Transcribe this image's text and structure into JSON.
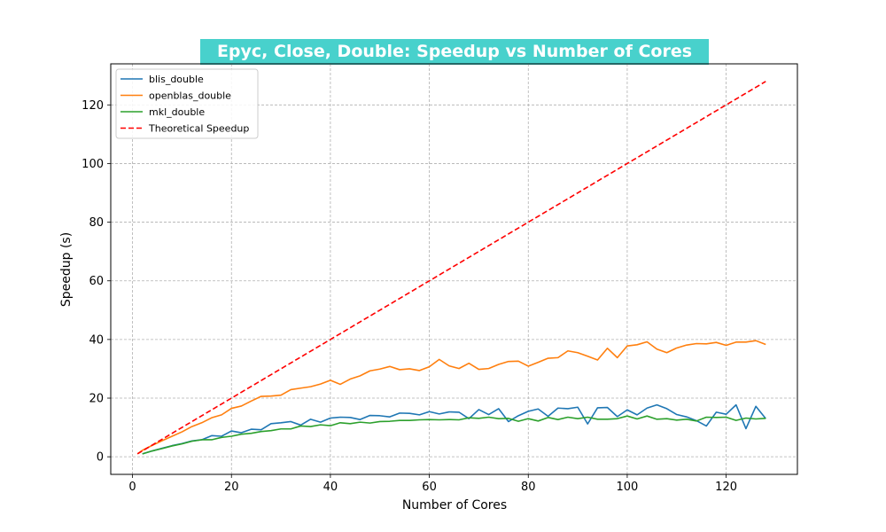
{
  "chart_data": {
    "type": "line",
    "title": "Epyc, Close, Double: Speedup vs Number of Cores",
    "title_bg": "#48d1cc",
    "xlabel": "Number of Cores",
    "ylabel": "Speedup (s)",
    "xlim": [
      -4.4,
      134.4
    ],
    "ylim": [
      -6,
      134
    ],
    "xticks": [
      0,
      20,
      40,
      60,
      80,
      100,
      120
    ],
    "yticks": [
      0,
      20,
      40,
      60,
      80,
      100,
      120
    ],
    "grid": true,
    "legend_position": "top-left",
    "series": [
      {
        "name": "blis_double",
        "color": "#1f77b4",
        "dash": "solid",
        "x": [
          2,
          4,
          6,
          8,
          10,
          12,
          14,
          16,
          18,
          20,
          22,
          24,
          26,
          28,
          30,
          32,
          34,
          36,
          38,
          40,
          42,
          44,
          46,
          48,
          50,
          52,
          54,
          56,
          58,
          60,
          62,
          64,
          66,
          68,
          70,
          72,
          74,
          76,
          78,
          80,
          82,
          84,
          86,
          88,
          90,
          92,
          94,
          96,
          98,
          100,
          102,
          104,
          106,
          108,
          110,
          112,
          114,
          116,
          118,
          120,
          122,
          124,
          126,
          128
        ],
        "y": [
          1.0,
          2.0,
          2.9,
          3.8,
          4.5,
          5.4,
          5.8,
          7.2,
          7.0,
          8.8,
          8.2,
          9.4,
          9.2,
          11.3,
          11.6,
          12.0,
          10.8,
          12.8,
          11.8,
          13.2,
          13.5,
          13.4,
          12.7,
          14.1,
          14.0,
          13.6,
          14.9,
          14.8,
          14.3,
          15.4,
          14.6,
          15.3,
          15.2,
          13.0,
          16.1,
          14.4,
          16.4,
          12.0,
          14.0,
          15.5,
          16.3,
          13.8,
          16.6,
          16.4,
          16.9,
          11.2,
          16.7,
          16.8,
          13.7,
          16.0,
          14.3,
          16.6,
          17.7,
          16.4,
          14.4,
          13.6,
          12.3,
          10.5,
          15.2,
          14.5,
          17.7,
          9.6,
          17.2,
          13.0
        ]
      },
      {
        "name": "openblas_double",
        "color": "#ff7f0e",
        "dash": "solid",
        "x": [
          1,
          2,
          4,
          6,
          8,
          10,
          12,
          14,
          16,
          18,
          20,
          22,
          24,
          26,
          28,
          30,
          32,
          34,
          36,
          38,
          40,
          42,
          44,
          46,
          48,
          50,
          52,
          54,
          56,
          58,
          60,
          62,
          64,
          66,
          68,
          70,
          72,
          74,
          76,
          78,
          80,
          82,
          84,
          86,
          88,
          90,
          92,
          94,
          96,
          98,
          100,
          102,
          104,
          106,
          108,
          110,
          112,
          114,
          116,
          118,
          120,
          122,
          124,
          126,
          128
        ],
        "y": [
          1.0,
          2.2,
          3.9,
          5.5,
          7.0,
          8.5,
          10.3,
          11.6,
          13.3,
          14.3,
          16.5,
          17.3,
          19.0,
          20.6,
          20.7,
          21.0,
          22.9,
          23.4,
          23.9,
          24.8,
          26.1,
          24.7,
          26.5,
          27.6,
          29.3,
          29.9,
          30.8,
          29.7,
          30.0,
          29.4,
          30.7,
          33.2,
          31.0,
          30.1,
          31.9,
          29.8,
          30.1,
          31.5,
          32.5,
          32.6,
          30.9,
          32.2,
          33.6,
          33.8,
          36.1,
          35.5,
          34.3,
          33.0,
          37.0,
          33.8,
          37.8,
          38.2,
          39.2,
          36.7,
          35.5,
          37.1,
          38.1,
          38.6,
          38.5,
          39.0,
          38.0,
          39.1,
          39.1,
          39.6,
          38.3
        ]
      },
      {
        "name": "mkl_double",
        "color": "#2ca02c",
        "dash": "solid",
        "x": [
          2,
          4,
          6,
          8,
          10,
          12,
          14,
          16,
          18,
          20,
          22,
          24,
          26,
          28,
          30,
          32,
          34,
          36,
          38,
          40,
          42,
          44,
          46,
          48,
          50,
          52,
          54,
          56,
          58,
          60,
          62,
          64,
          66,
          68,
          70,
          72,
          74,
          76,
          78,
          80,
          82,
          84,
          86,
          88,
          90,
          92,
          94,
          96,
          98,
          100,
          102,
          104,
          106,
          108,
          110,
          112,
          114,
          116,
          118,
          120,
          122,
          124,
          126,
          128
        ],
        "y": [
          1.0,
          2.0,
          2.8,
          3.7,
          4.4,
          5.3,
          5.8,
          5.8,
          6.6,
          7.0,
          7.7,
          8.0,
          8.6,
          8.9,
          9.5,
          9.5,
          10.5,
          10.3,
          10.9,
          10.6,
          11.6,
          11.3,
          11.8,
          11.5,
          12.0,
          12.1,
          12.4,
          12.4,
          12.6,
          12.7,
          12.6,
          12.7,
          12.6,
          13.3,
          13.1,
          13.5,
          13.0,
          13.1,
          12.1,
          13.0,
          12.2,
          13.4,
          12.7,
          13.5,
          13.0,
          13.5,
          12.8,
          12.8,
          13.0,
          13.9,
          12.9,
          13.9,
          12.8,
          13.0,
          12.5,
          12.8,
          12.2,
          13.5,
          13.4,
          13.5,
          12.4,
          13.2,
          12.9,
          13.1
        ]
      },
      {
        "name": "Theoretical Speedup",
        "color": "#ff0000",
        "dash": "dashed",
        "x": [
          1,
          128
        ],
        "y": [
          1,
          128
        ]
      }
    ]
  }
}
